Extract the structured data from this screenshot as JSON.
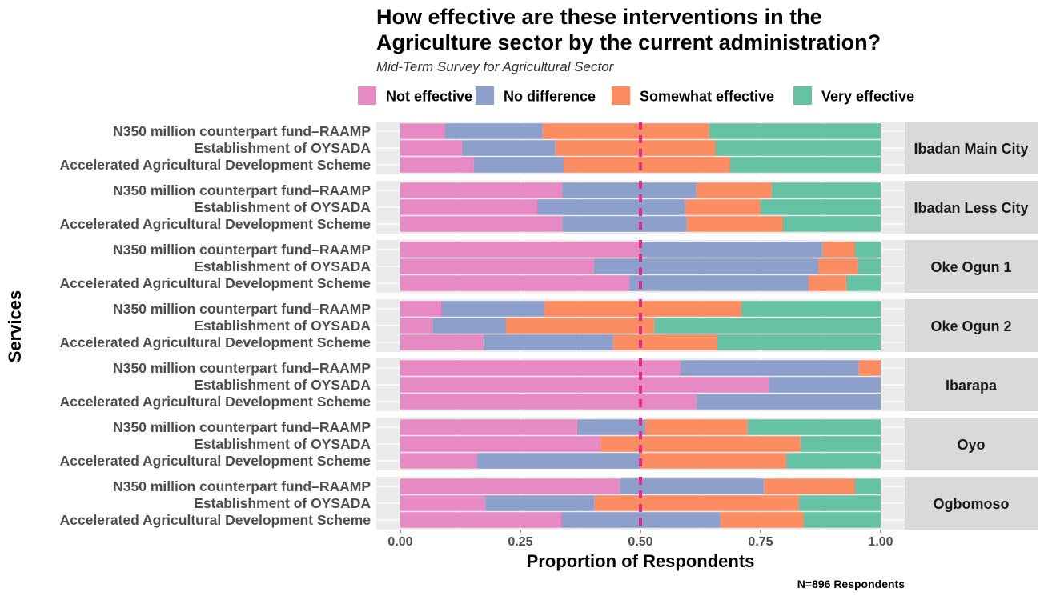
{
  "chart_data": {
    "type": "bar",
    "orientation": "horizontal-stacked-proportion",
    "title": "How effective are these interventions in the Agriculture sector by the current administration?",
    "title_lines": [
      "How effective are these interventions in the",
      "Agriculture sector by the current administration?"
    ],
    "subtitle": "Mid-Term Survey for Agricultural Sector",
    "xlabel": "Proportion of Respondents",
    "ylabel": "Services",
    "caption": "N=896 Respondents",
    "xlim": [
      0,
      1
    ],
    "x_ticks": [
      0,
      0.25,
      0.5,
      0.75,
      1
    ],
    "x_tick_labels": [
      "0.00",
      "0.25",
      "0.50",
      "0.75",
      "1.00"
    ],
    "reference_line": 0.5,
    "legend_position": "top",
    "grid": true,
    "categories": [
      "N350 million counterpart fund–RAAMP",
      "Establishment of OYSADA",
      "Accelerated Agricultural Development Scheme"
    ],
    "series": [
      {
        "name": "Not effective",
        "color": "#E78AC3"
      },
      {
        "name": "No difference",
        "color": "#8DA0CB"
      },
      {
        "name": "Somewhat effective",
        "color": "#FC8D62"
      },
      {
        "name": "Very effective",
        "color": "#66C2A5"
      }
    ],
    "reference_line_color": "#E7298A",
    "panels": [
      {
        "name": "Ibadan Main City",
        "values": [
          [
            0.092,
            0.203,
            0.348,
            0.357
          ],
          [
            0.128,
            0.195,
            0.332,
            0.345
          ],
          [
            0.153,
            0.187,
            0.345,
            0.315
          ]
        ]
      },
      {
        "name": "Ibadan Less City",
        "values": [
          [
            0.337,
            0.278,
            0.158,
            0.227
          ],
          [
            0.285,
            0.307,
            0.158,
            0.25
          ],
          [
            0.337,
            0.258,
            0.2,
            0.205
          ]
        ]
      },
      {
        "name": "Oke Ogun 1",
        "values": [
          [
            0.5,
            0.378,
            0.067,
            0.055
          ],
          [
            0.403,
            0.467,
            0.082,
            0.048
          ],
          [
            0.477,
            0.373,
            0.078,
            0.072
          ]
        ]
      },
      {
        "name": "Oke Ogun 2",
        "values": [
          [
            0.085,
            0.215,
            0.41,
            0.29
          ],
          [
            0.067,
            0.153,
            0.308,
            0.472
          ],
          [
            0.173,
            0.27,
            0.217,
            0.34
          ]
        ]
      },
      {
        "name": "Ibarapa",
        "values": [
          [
            0.582,
            0.372,
            0.046,
            0.0
          ],
          [
            0.767,
            0.233,
            0.0,
            0.0
          ],
          [
            0.617,
            0.383,
            0.0,
            0.0
          ]
        ]
      },
      {
        "name": "Oyo",
        "values": [
          [
            0.368,
            0.142,
            0.213,
            0.277
          ],
          [
            0.417,
            0.0,
            0.416,
            0.167
          ],
          [
            0.16,
            0.34,
            0.302,
            0.198
          ]
        ]
      },
      {
        "name": "Ogbomoso",
        "values": [
          [
            0.457,
            0.3,
            0.188,
            0.055
          ],
          [
            0.177,
            0.227,
            0.426,
            0.17
          ],
          [
            0.335,
            0.33,
            0.175,
            0.16
          ]
        ]
      }
    ]
  }
}
